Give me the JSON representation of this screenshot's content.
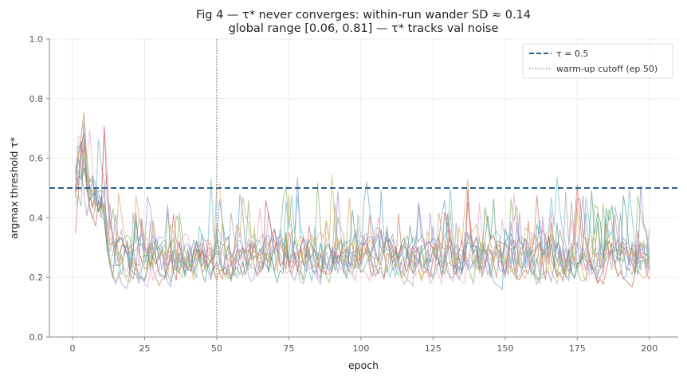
{
  "chart_data": {
    "type": "line",
    "title": "Fig 4 — τ* never converges: within-run wander SD ≈ 0.14",
    "subtitle": "global range [0.06, 0.81] — τ* tracks val noise",
    "xlabel": "epoch",
    "ylabel": "argmax threshold τ*",
    "xlim": [
      -8,
      210
    ],
    "ylim": [
      0,
      1
    ],
    "xticks": [
      0,
      25,
      50,
      75,
      100,
      125,
      150,
      175,
      200
    ],
    "yticks": [
      0.0,
      0.2,
      0.4,
      0.6,
      0.8,
      1.0
    ],
    "grid": true,
    "legend_position": "top-right",
    "reference_lines": [
      {
        "label": "τ = 0.5",
        "orientation": "horizontal",
        "value": 0.5,
        "style": "dashed",
        "color": "#2b5f91"
      },
      {
        "label": "warm-up cutoff (ep 50)",
        "orientation": "vertical",
        "value": 50,
        "style": "dotted",
        "color": "#999999"
      }
    ],
    "epochs": [
      1,
      200
    ],
    "run_count": 12,
    "run_colors": [
      "#c9705a",
      "#5b9bd5",
      "#7fb069",
      "#a88cc8",
      "#e8a0c8",
      "#5fb8c8",
      "#d4a05a",
      "#8a8ac8",
      "#c85a5a",
      "#a0a0a0",
      "#4a9a7a",
      "#c8b45a"
    ],
    "series_note_values": {
      "global_min": 0.06,
      "global_max": 0.81
    }
  }
}
